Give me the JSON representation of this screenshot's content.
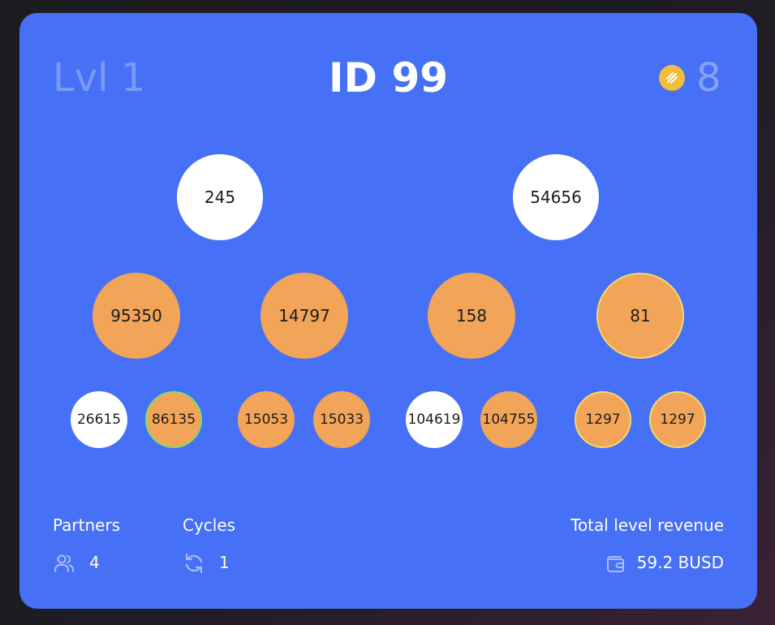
{
  "header": {
    "level_label": "Lvl 1",
    "id_label": "ID 99",
    "coin_icon": "busd-coin-icon",
    "partner_count": "8"
  },
  "tree": {
    "level1": [
      {
        "id": "245",
        "color": "white"
      },
      {
        "id": "54656",
        "color": "white"
      }
    ],
    "level2": [
      {
        "id": "95350",
        "color": "orange"
      },
      {
        "id": "14797",
        "color": "orange"
      },
      {
        "id": "158",
        "color": "orange"
      },
      {
        "id": "81",
        "color": "orange",
        "ring": "yellow"
      }
    ],
    "level3": [
      {
        "id": "26615",
        "color": "white"
      },
      {
        "id": "86135",
        "color": "orange",
        "ring": "green"
      },
      {
        "id": "15053",
        "color": "orange"
      },
      {
        "id": "15033",
        "color": "orange"
      },
      {
        "id": "104619",
        "color": "white"
      },
      {
        "id": "104755",
        "color": "orange"
      },
      {
        "id": "1297",
        "color": "orange",
        "ring": "yellow"
      },
      {
        "id": "1297",
        "color": "orange",
        "ring": "yellow"
      }
    ]
  },
  "stats": {
    "partners_label": "Partners",
    "partners_value": "4",
    "partners_icon": "users-icon",
    "cycles_label": "Cycles",
    "cycles_value": "1",
    "cycles_icon": "refresh-icon",
    "revenue_label": "Total level revenue",
    "revenue_value": "59.2 BUSD",
    "revenue_icon": "wallet-icon"
  },
  "colors": {
    "card_bg": "#4670f5",
    "node_white": "#ffffff",
    "node_orange": "#f2a458",
    "coin": "#f1be3b"
  }
}
